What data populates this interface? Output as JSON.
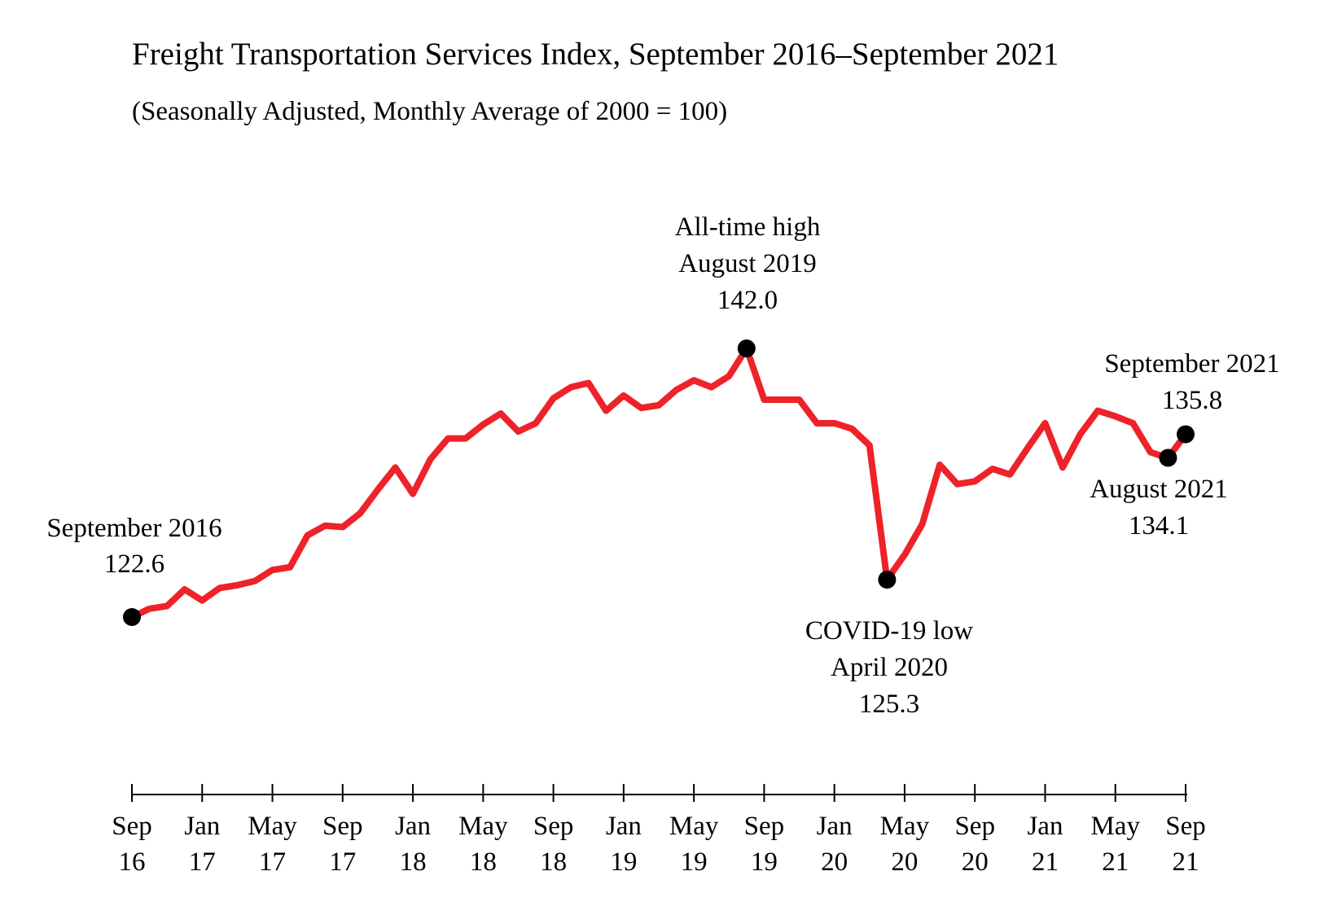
{
  "chart_data": {
    "type": "line",
    "title": "Freight Transportation Services Index, September 2016–September 2021",
    "subtitle": "(Seasonally Adjusted, Monthly Average of 2000 = 100)",
    "categories": [
      "Sep 16",
      null,
      null,
      null,
      "Jan 17",
      null,
      null,
      null,
      "May 17",
      null,
      null,
      null,
      "Sep 17",
      null,
      null,
      null,
      "Jan 18",
      null,
      null,
      null,
      "May 18",
      null,
      null,
      null,
      "Sep 18",
      null,
      null,
      null,
      "Jan 19",
      null,
      null,
      null,
      "May 19",
      null,
      null,
      null,
      "Sep 19",
      null,
      null,
      null,
      "Jan 20",
      null,
      null,
      null,
      "May 20",
      null,
      null,
      null,
      "Sep 20",
      null,
      null,
      null,
      "Jan 21",
      null,
      null,
      null,
      "May 21",
      null,
      null,
      null,
      "Sep 21"
    ],
    "series": [
      {
        "color": "#ee2229",
        "values": [
          122.6,
          123.2,
          123.4,
          124.6,
          123.8,
          124.7,
          124.9,
          125.2,
          126.0,
          126.2,
          128.5,
          129.2,
          129.1,
          130.1,
          131.8,
          133.4,
          131.5,
          134.0,
          135.5,
          135.5,
          136.5,
          137.3,
          136.0,
          136.6,
          138.4,
          139.2,
          139.5,
          137.5,
          138.6,
          137.7,
          137.9,
          139.0,
          139.7,
          139.2,
          140.0,
          142.0,
          138.3,
          138.3,
          138.3,
          136.6,
          136.6,
          136.2,
          135.0,
          125.3,
          127.1,
          129.3,
          133.6,
          132.2,
          132.4,
          133.3,
          132.9,
          134.8,
          136.6,
          133.4,
          135.8,
          137.5,
          137.1,
          136.6,
          134.5,
          134.1,
          135.8
        ],
        "value_labels": [
          "122.6",
          null,
          null,
          null,
          null,
          null,
          null,
          null,
          null,
          null,
          null,
          null,
          null,
          null,
          null,
          null,
          null,
          null,
          null,
          null,
          null,
          null,
          null,
          null,
          null,
          null,
          null,
          null,
          null,
          null,
          null,
          null,
          null,
          null,
          null,
          "142.0",
          null,
          null,
          null,
          null,
          null,
          null,
          null,
          "125.3",
          null,
          null,
          null,
          null,
          null,
          null,
          null,
          null,
          null,
          null,
          null,
          null,
          null,
          null,
          null,
          "134.1",
          "135.8"
        ]
      }
    ],
    "annotations": [
      [
        "September 2016"
      ],
      [
        "All-time high",
        "August 2019"
      ],
      [
        "COVID-19 low",
        "April 2020"
      ],
      [
        "August 2021"
      ],
      [
        "September 2021"
      ]
    ]
  }
}
